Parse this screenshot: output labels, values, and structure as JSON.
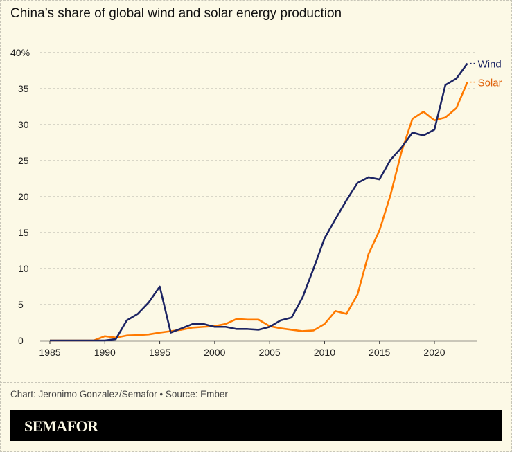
{
  "title": "China’s share of global wind and solar energy production",
  "credit": "Chart: Jeronimo Gonzalez/Semafor • Source: Ember",
  "brand": "SEMAFOR",
  "chart_data": {
    "type": "line",
    "title": "China’s share of global wind and solar energy production",
    "xlabel": "",
    "ylabel": "",
    "xlim": [
      1985,
      2023
    ],
    "ylim": [
      0,
      40
    ],
    "grid": true,
    "legend": "direct labels at line ends (right)",
    "x_ticks": [
      1985,
      1990,
      1995,
      2000,
      2005,
      2010,
      2015,
      2020
    ],
    "x_tick_labels": [
      "1985",
      "1990",
      "1995",
      "2000",
      "2005",
      "2010",
      "2015",
      "2020"
    ],
    "y_ticks": [
      0,
      5,
      10,
      15,
      20,
      25,
      30,
      35,
      40
    ],
    "y_tick_labels": [
      "0",
      "5",
      "10",
      "15",
      "20",
      "25",
      "30",
      "35",
      "40%"
    ],
    "x": [
      1985,
      1986,
      1987,
      1988,
      1989,
      1990,
      1991,
      1992,
      1993,
      1994,
      1995,
      1996,
      1997,
      1998,
      1999,
      2000,
      2001,
      2002,
      2003,
      2004,
      2005,
      2006,
      2007,
      2008,
      2009,
      2010,
      2011,
      2012,
      2013,
      2014,
      2015,
      2016,
      2017,
      2018,
      2019,
      2020,
      2021,
      2022,
      2023
    ],
    "series": [
      {
        "name": "Wind",
        "color": "#1c2463",
        "values": [
          0,
          0,
          0,
          0,
          0,
          0,
          0.2,
          2.8,
          3.7,
          5.3,
          7.5,
          1.1,
          1.7,
          2.3,
          2.3,
          1.9,
          1.9,
          1.6,
          1.6,
          1.5,
          1.9,
          2.8,
          3.2,
          6.0,
          10.0,
          14.2,
          16.9,
          19.5,
          21.9,
          22.7,
          22.4,
          25.1,
          26.8,
          28.9,
          28.5,
          29.3,
          35.5,
          36.4,
          38.5
        ]
      },
      {
        "name": "Solar",
        "color": "#ff7a00",
        "values": [
          0,
          0,
          0,
          0,
          0,
          0.6,
          0.4,
          0.7,
          0.75,
          0.85,
          1.1,
          1.3,
          1.5,
          1.8,
          1.9,
          2.0,
          2.3,
          3.0,
          2.9,
          2.9,
          2.0,
          1.7,
          1.5,
          1.3,
          1.4,
          2.3,
          4.1,
          3.7,
          6.4,
          12.0,
          15.3,
          20.2,
          26.2,
          30.8,
          31.8,
          30.6,
          31.0,
          32.3,
          35.9
        ]
      }
    ],
    "label_colors": {
      "Wind": "#1c2463",
      "Solar": "#e0620a"
    }
  }
}
